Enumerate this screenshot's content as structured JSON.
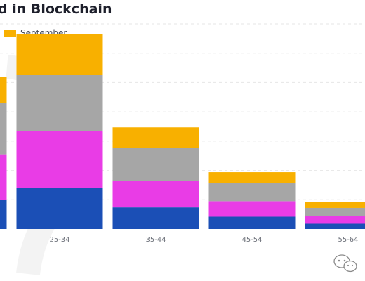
{
  "title": "d in Blockchain",
  "legend": [
    {
      "name": "September",
      "color": "#F8B000"
    }
  ],
  "chart_data": {
    "type": "bar",
    "stacked": true,
    "title": "d in Blockchain",
    "categories": [
      "",
      "25-34",
      "35-44",
      "45-54",
      "55-64"
    ],
    "series": [
      {
        "color": "#1B4FB6",
        "values": [
          10,
          14,
          7.4,
          4.2,
          1.8
        ]
      },
      {
        "color": "#E93CE6",
        "values": [
          15.5,
          19.5,
          9,
          5.3,
          2.7
        ]
      },
      {
        "color": "#A6A6A6",
        "values": [
          17.5,
          19,
          11.3,
          6.2,
          2.7
        ]
      },
      {
        "name": "September",
        "color": "#F8B000",
        "values": [
          9,
          14,
          7,
          3.7,
          2
        ]
      }
    ],
    "ylim": [
      0,
      70
    ],
    "grid": true,
    "gridline_count": 7,
    "legend_position": "top-left"
  }
}
